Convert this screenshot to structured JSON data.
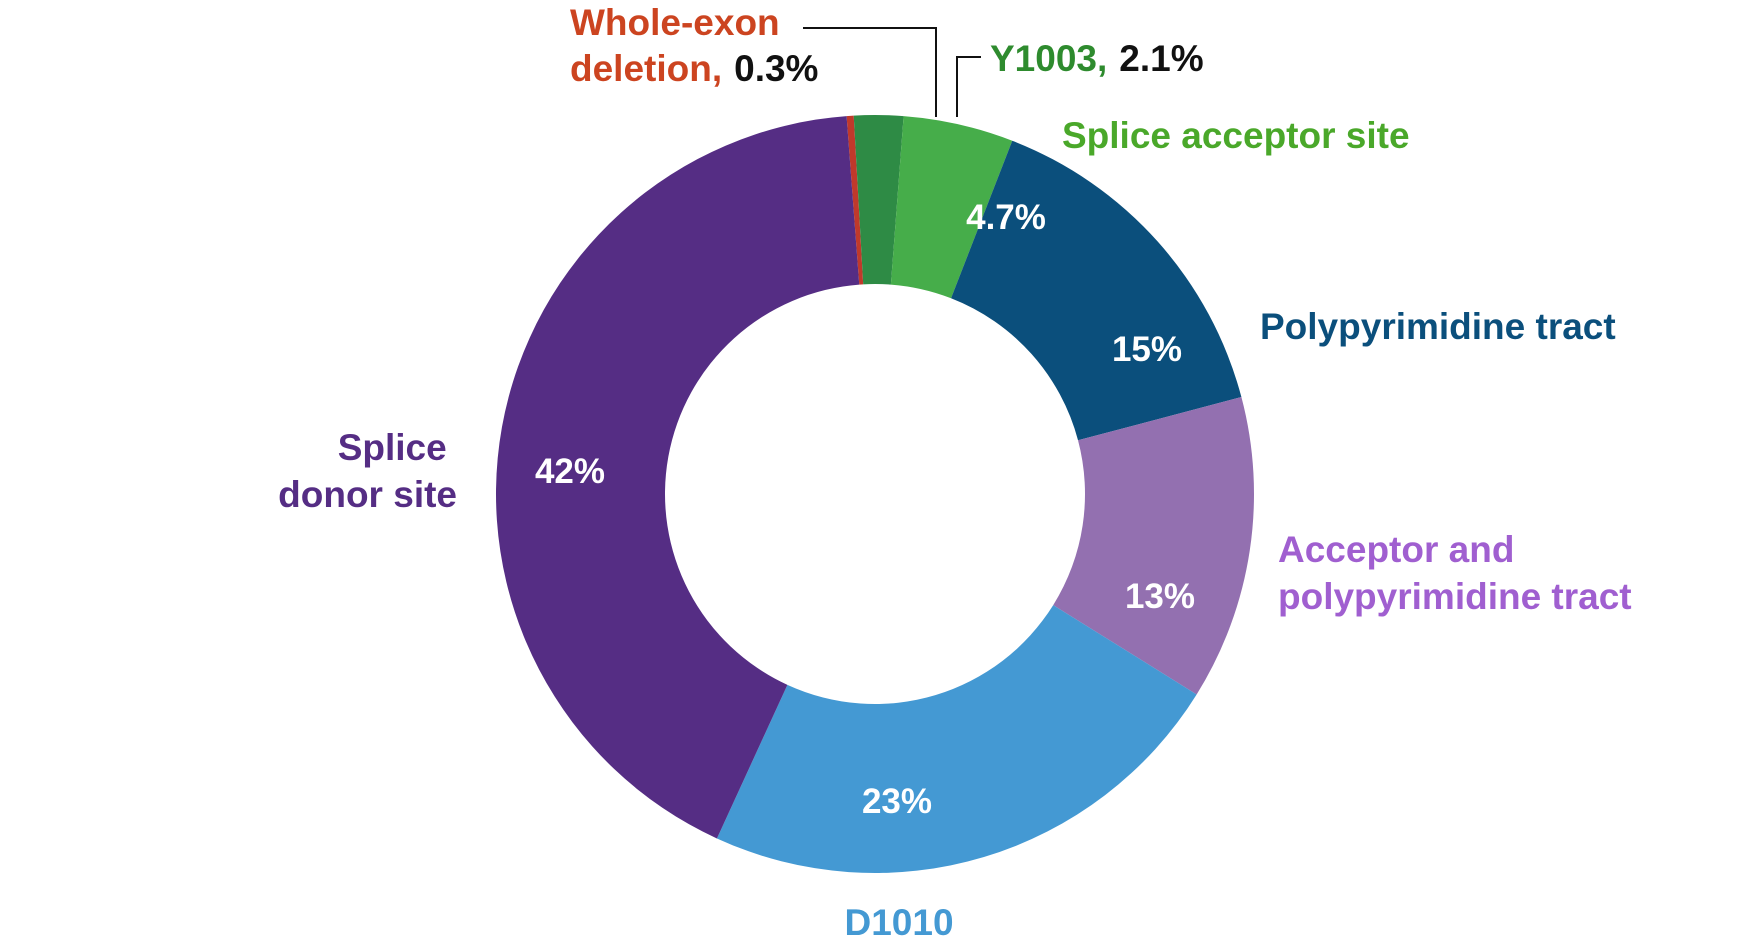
{
  "chart_data": {
    "type": "pie",
    "subtype": "donut",
    "title": "",
    "slices": [
      {
        "label": "Whole-exon deletion,",
        "value": 0.3,
        "value_text": "0.3%",
        "color": "#c0392b",
        "label_color": "#cc4420"
      },
      {
        "label": "Y1003,",
        "value": 2.1,
        "value_text": "2.1%",
        "color": "#2e8b45",
        "label_color": "#2e8b2e"
      },
      {
        "label": "Splice acceptor site",
        "value": 4.7,
        "value_text": "4.7%",
        "color": "#46ad4a",
        "label_color": "#4aa82a"
      },
      {
        "label": "Polypyrimidine tract",
        "value": 15,
        "value_text": "15%",
        "color": "#0b4f7c",
        "label_color": "#0b4f7c"
      },
      {
        "label": "Acceptor and polypyrimidine tract",
        "value": 13,
        "value_text": "13%",
        "color": "#9370b0",
        "label_color": "#a05fd0"
      },
      {
        "label": "D1010",
        "value": 23,
        "value_text": "23%",
        "color": "#4499d3",
        "label_color": "#4499d3"
      },
      {
        "label": "Splice donor site",
        "value": 42,
        "value_text": "42%",
        "color": "#552d84",
        "label_color": "#552d84"
      }
    ]
  }
}
